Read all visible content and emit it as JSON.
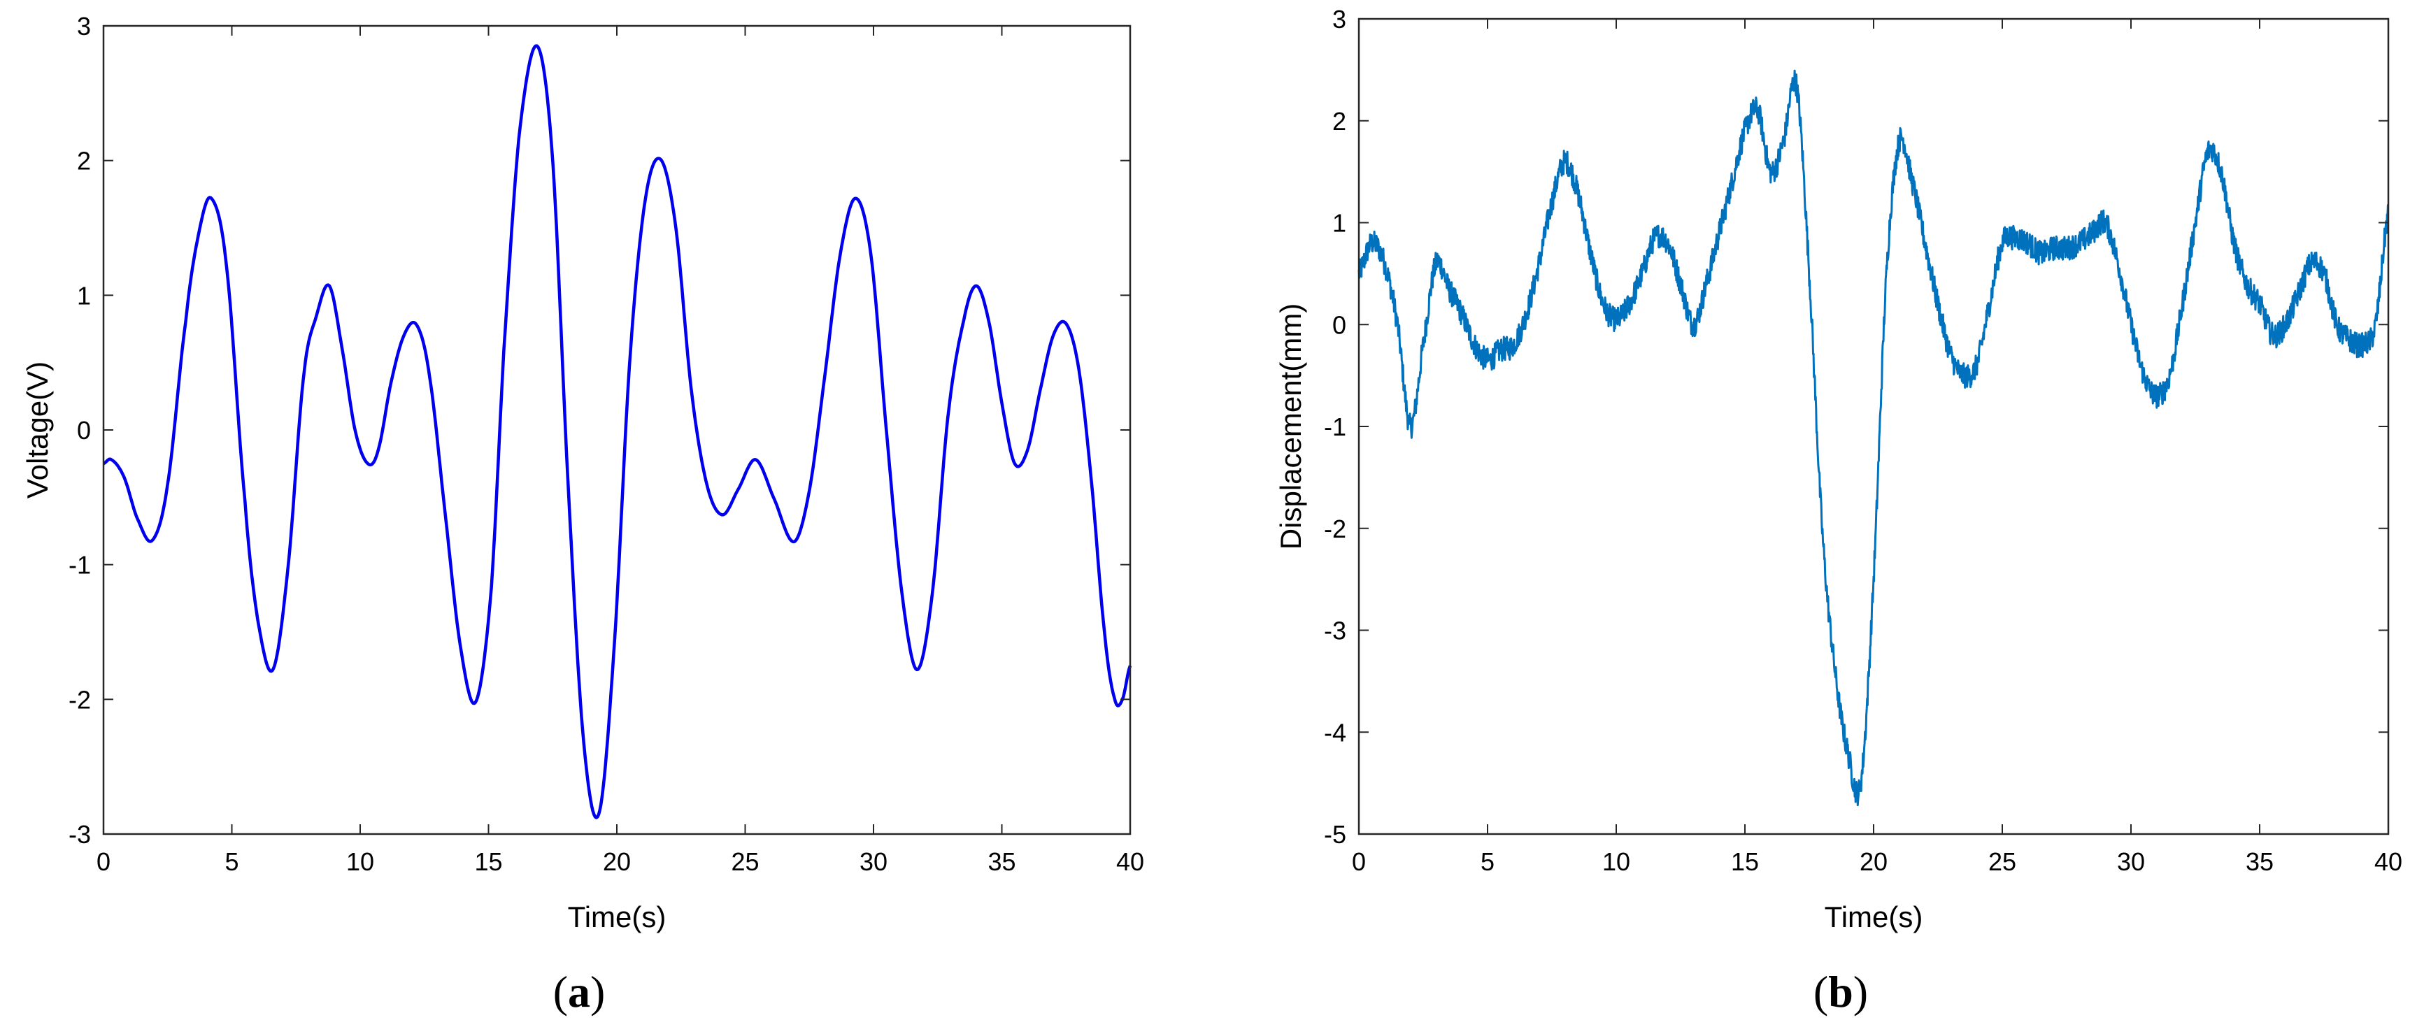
{
  "figure": {
    "captions": [
      {
        "open": "(",
        "letter": "a",
        "close": ")"
      },
      {
        "open": "(",
        "letter": "b",
        "close": ")"
      }
    ]
  },
  "chart_data": [
    {
      "type": "line",
      "title": "",
      "xlabel": "Time(s)",
      "ylabel": "Voltage(V)",
      "xlim": [
        0,
        40
      ],
      "ylim": [
        -3,
        3
      ],
      "xticks": [
        0,
        5,
        10,
        15,
        20,
        25,
        30,
        35,
        40
      ],
      "yticks": [
        -3,
        -2,
        -1,
        0,
        1,
        2,
        3
      ],
      "grid": false,
      "color": "#0000ee",
      "series": [
        {
          "x": [
            0,
            0.3,
            0.8,
            1.3,
            1.9,
            2.5,
            3.2,
            3.7,
            4.2,
            4.8,
            5.5,
            6.0,
            6.6,
            7.2,
            7.8,
            8.3,
            8.8,
            9.3,
            9.8,
            10.3,
            10.7,
            11.2,
            11.7,
            12.2,
            12.7,
            13.3,
            13.9,
            14.5,
            15.1,
            15.6,
            16.2,
            16.9,
            17.5,
            18.1,
            18.7,
            19.3,
            19.9,
            20.5,
            21.1,
            21.7,
            22.3,
            22.9,
            23.5,
            24.1,
            24.7,
            25.4,
            26.1,
            26.9,
            27.5,
            28.1,
            28.7,
            29.3,
            29.9,
            30.5,
            31.1,
            31.7,
            32.3,
            32.9,
            33.5,
            34.0,
            34.5,
            35.0,
            35.5,
            36.0,
            36.5,
            37.0,
            37.5,
            38.0,
            38.5,
            39.0,
            39.4,
            39.7,
            40.0
          ],
          "y": [
            -0.25,
            -0.22,
            -0.35,
            -0.65,
            -0.82,
            -0.4,
            0.8,
            1.45,
            1.72,
            1.2,
            -0.5,
            -1.4,
            -1.78,
            -1.0,
            0.4,
            0.85,
            1.07,
            0.6,
            0.0,
            -0.25,
            -0.15,
            0.35,
            0.7,
            0.78,
            0.4,
            -0.6,
            -1.6,
            -2.02,
            -1.2,
            0.6,
            2.2,
            2.85,
            2.0,
            -0.4,
            -2.3,
            -2.85,
            -1.6,
            0.5,
            1.7,
            2.01,
            1.5,
            0.3,
            -0.4,
            -0.63,
            -0.45,
            -0.22,
            -0.5,
            -0.83,
            -0.45,
            0.4,
            1.3,
            1.72,
            1.3,
            0.0,
            -1.2,
            -1.78,
            -1.2,
            0.1,
            0.8,
            1.07,
            0.8,
            0.2,
            -0.25,
            -0.15,
            0.3,
            0.7,
            0.79,
            0.45,
            -0.4,
            -1.5,
            -2.0,
            -2.0,
            -1.75
          ]
        }
      ]
    },
    {
      "type": "line",
      "title": "",
      "xlabel": "Time(s)",
      "ylabel": "Displacement(mm)",
      "xlim": [
        0,
        40
      ],
      "ylim": [
        -5,
        3
      ],
      "xticks": [
        0,
        5,
        10,
        15,
        20,
        25,
        30,
        35,
        40
      ],
      "yticks": [
        -5,
        -4,
        -3,
        -2,
        -1,
        0,
        1,
        2,
        3
      ],
      "grid": false,
      "color": "#0072bd",
      "noise": 0.12,
      "series": [
        {
          "x": [
            0,
            0.5,
            1.0,
            1.5,
            2.0,
            2.5,
            3.0,
            3.5,
            4.0,
            4.5,
            5.0,
            5.5,
            6.0,
            6.5,
            7.0,
            7.5,
            8.0,
            8.5,
            9.0,
            9.5,
            10.0,
            10.5,
            11.0,
            11.5,
            12.0,
            12.5,
            13.0,
            13.5,
            14.0,
            14.5,
            15.0,
            15.5,
            16.0,
            16.5,
            17.0,
            17.5,
            18.0,
            18.5,
            19.0,
            19.5,
            20.0,
            20.5,
            21.0,
            21.5,
            22.0,
            22.5,
            23.0,
            23.5,
            24.0,
            24.5,
            25.0,
            25.5,
            26.0,
            26.5,
            27.0,
            27.5,
            28.0,
            28.5,
            29.0,
            29.5,
            30.0,
            30.5,
            31.0,
            31.5,
            32.0,
            32.5,
            33.0,
            33.5,
            34.0,
            34.5,
            35.0,
            35.5,
            36.0,
            36.5,
            37.0,
            37.5,
            38.0,
            38.5,
            39.0,
            39.5,
            40.0
          ],
          "y": [
            0.5,
            0.8,
            0.6,
            0.0,
            -1.0,
            -0.2,
            0.6,
            0.35,
            0.1,
            -0.2,
            -0.35,
            -0.25,
            -0.2,
            0.1,
            0.6,
            1.2,
            1.6,
            1.3,
            0.7,
            0.2,
            0.05,
            0.2,
            0.5,
            0.85,
            0.8,
            0.4,
            0.0,
            0.4,
            0.9,
            1.4,
            1.9,
            2.1,
            1.5,
            1.8,
            2.35,
            0.5,
            -2.0,
            -3.4,
            -4.2,
            -4.5,
            -2.5,
            0.5,
            1.8,
            1.4,
            0.8,
            0.2,
            -0.3,
            -0.5,
            -0.4,
            0.2,
            0.8,
            0.85,
            0.8,
            0.7,
            0.75,
            0.75,
            0.8,
            0.9,
            1.0,
            0.6,
            0.0,
            -0.5,
            -0.7,
            -0.5,
            0.2,
            1.0,
            1.7,
            1.5,
            0.8,
            0.4,
            0.2,
            -0.1,
            0.0,
            0.3,
            0.6,
            0.5,
            0.0,
            -0.15,
            -0.2,
            0.0,
            1.1
          ]
        }
      ]
    }
  ]
}
